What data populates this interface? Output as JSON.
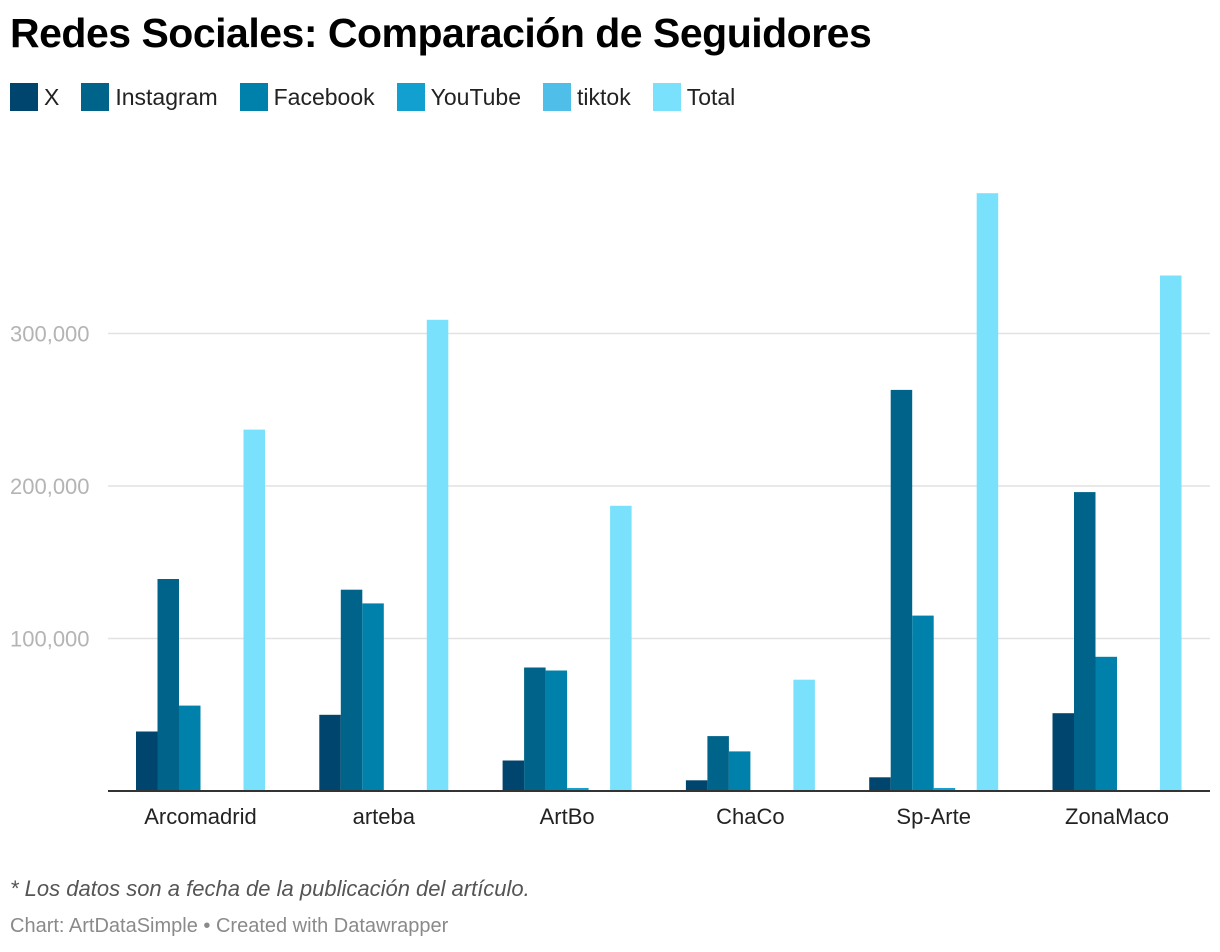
{
  "chart_data": {
    "type": "bar",
    "title": "Redes Sociales: Comparación de Seguidores",
    "categories": [
      "Arcomadrid",
      "arteba",
      "ArtBo",
      "ChaCo",
      "Sp-Arte",
      "ZonaMaco"
    ],
    "series": [
      {
        "name": "X",
        "color": "#00456e",
        "values": [
          39000,
          50000,
          20000,
          7000,
          9000,
          51000
        ]
      },
      {
        "name": "Instagram",
        "color": "#006389",
        "values": [
          139000,
          132000,
          81000,
          36000,
          263000,
          196000
        ]
      },
      {
        "name": "Facebook",
        "color": "#0081ab",
        "values": [
          56000,
          123000,
          79000,
          26000,
          115000,
          88000
        ]
      },
      {
        "name": "YouTube",
        "color": "#11a0d0",
        "values": [
          0,
          0,
          2000,
          0,
          2000,
          0
        ]
      },
      {
        "name": "tiktok",
        "color": "#4fbee8",
        "values": [
          0,
          0,
          0,
          0,
          0,
          0
        ]
      },
      {
        "name": "Total",
        "color": "#7ae1fd",
        "values": [
          237000,
          309000,
          187000,
          73000,
          392000,
          338000
        ]
      }
    ],
    "y_ticks": [
      100000,
      200000,
      300000
    ],
    "y_tick_labels": [
      "100,000",
      "200,000",
      "300,000"
    ],
    "ylim": [
      0,
      400000
    ],
    "xlabel": "",
    "ylabel": "",
    "grid": true,
    "legend": "top-left"
  },
  "footer": {
    "note": "* Los datos son a fecha de la publicación del artículo.",
    "credit": "Chart: ArtDataSimple • Created with Datawrapper"
  }
}
